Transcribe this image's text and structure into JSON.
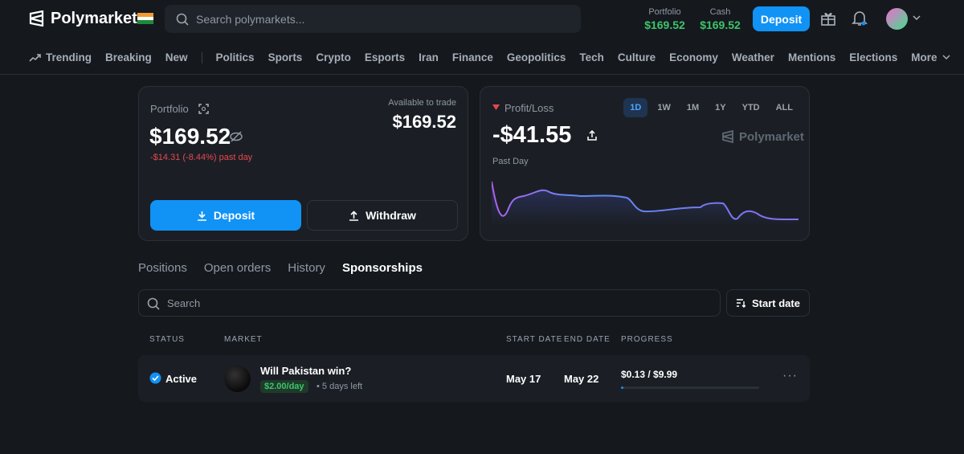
{
  "header": {
    "brand": "Polymarket",
    "search_placeholder": "Search polymarkets...",
    "portfolio_label": "Portfolio",
    "portfolio_value": "$169.52",
    "cash_label": "Cash",
    "cash_value": "$169.52",
    "deposit": "Deposit"
  },
  "nav": [
    "Trending",
    "Breaking",
    "New",
    "Politics",
    "Sports",
    "Crypto",
    "Esports",
    "Iran",
    "Finance",
    "Geopolitics",
    "Tech",
    "Culture",
    "Economy",
    "Weather",
    "Mentions",
    "Elections",
    "More"
  ],
  "portfolio_card": {
    "label": "Portfolio",
    "value": "$169.52",
    "change": "-$14.31 (-8.44%) past day",
    "available_label": "Available to trade",
    "available_value": "$169.52",
    "deposit": "Deposit",
    "withdraw": "Withdraw"
  },
  "pnl_card": {
    "label": "Profit/Loss",
    "ranges": [
      "1D",
      "1W",
      "1M",
      "1Y",
      "YTD",
      "ALL"
    ],
    "value": "-$41.55",
    "brand": "Polymarket",
    "period": "Past Day"
  },
  "tabs": [
    "Positions",
    "Open orders",
    "History",
    "Sponsorships"
  ],
  "filters": {
    "search_placeholder": "Search",
    "sort": "Start date"
  },
  "table": {
    "columns": [
      "STATUS",
      "MARKET",
      "START DATE",
      "END DATE",
      "PROGRESS"
    ],
    "rows": [
      {
        "status": "Active",
        "market": "Will Pakistan win?",
        "rate": "$2.00/day",
        "remaining": "5 days left",
        "start": "May 17",
        "end": "May 22",
        "progress": "$0.13 / $9.99"
      }
    ]
  }
}
